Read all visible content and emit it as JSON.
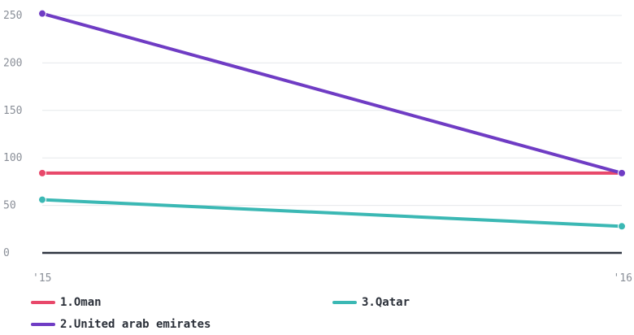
{
  "chart_data": {
    "type": "line",
    "categories": [
      "'15",
      "'16"
    ],
    "y_ticks": [
      "0",
      "50",
      "100",
      "150",
      "200",
      "250"
    ],
    "ylim": [
      0,
      250
    ],
    "series": [
      {
        "name": "1.Oman",
        "values": [
          84,
          84
        ],
        "color": "#e8486a"
      },
      {
        "name": "2.United arab emirates",
        "values": [
          252,
          84
        ],
        "color": "#6f3cc4"
      },
      {
        "name": "3.Qatar",
        "values": [
          56,
          28
        ],
        "color": "#3bb8b4"
      }
    ],
    "grid": true,
    "legend_position": "bottom"
  }
}
